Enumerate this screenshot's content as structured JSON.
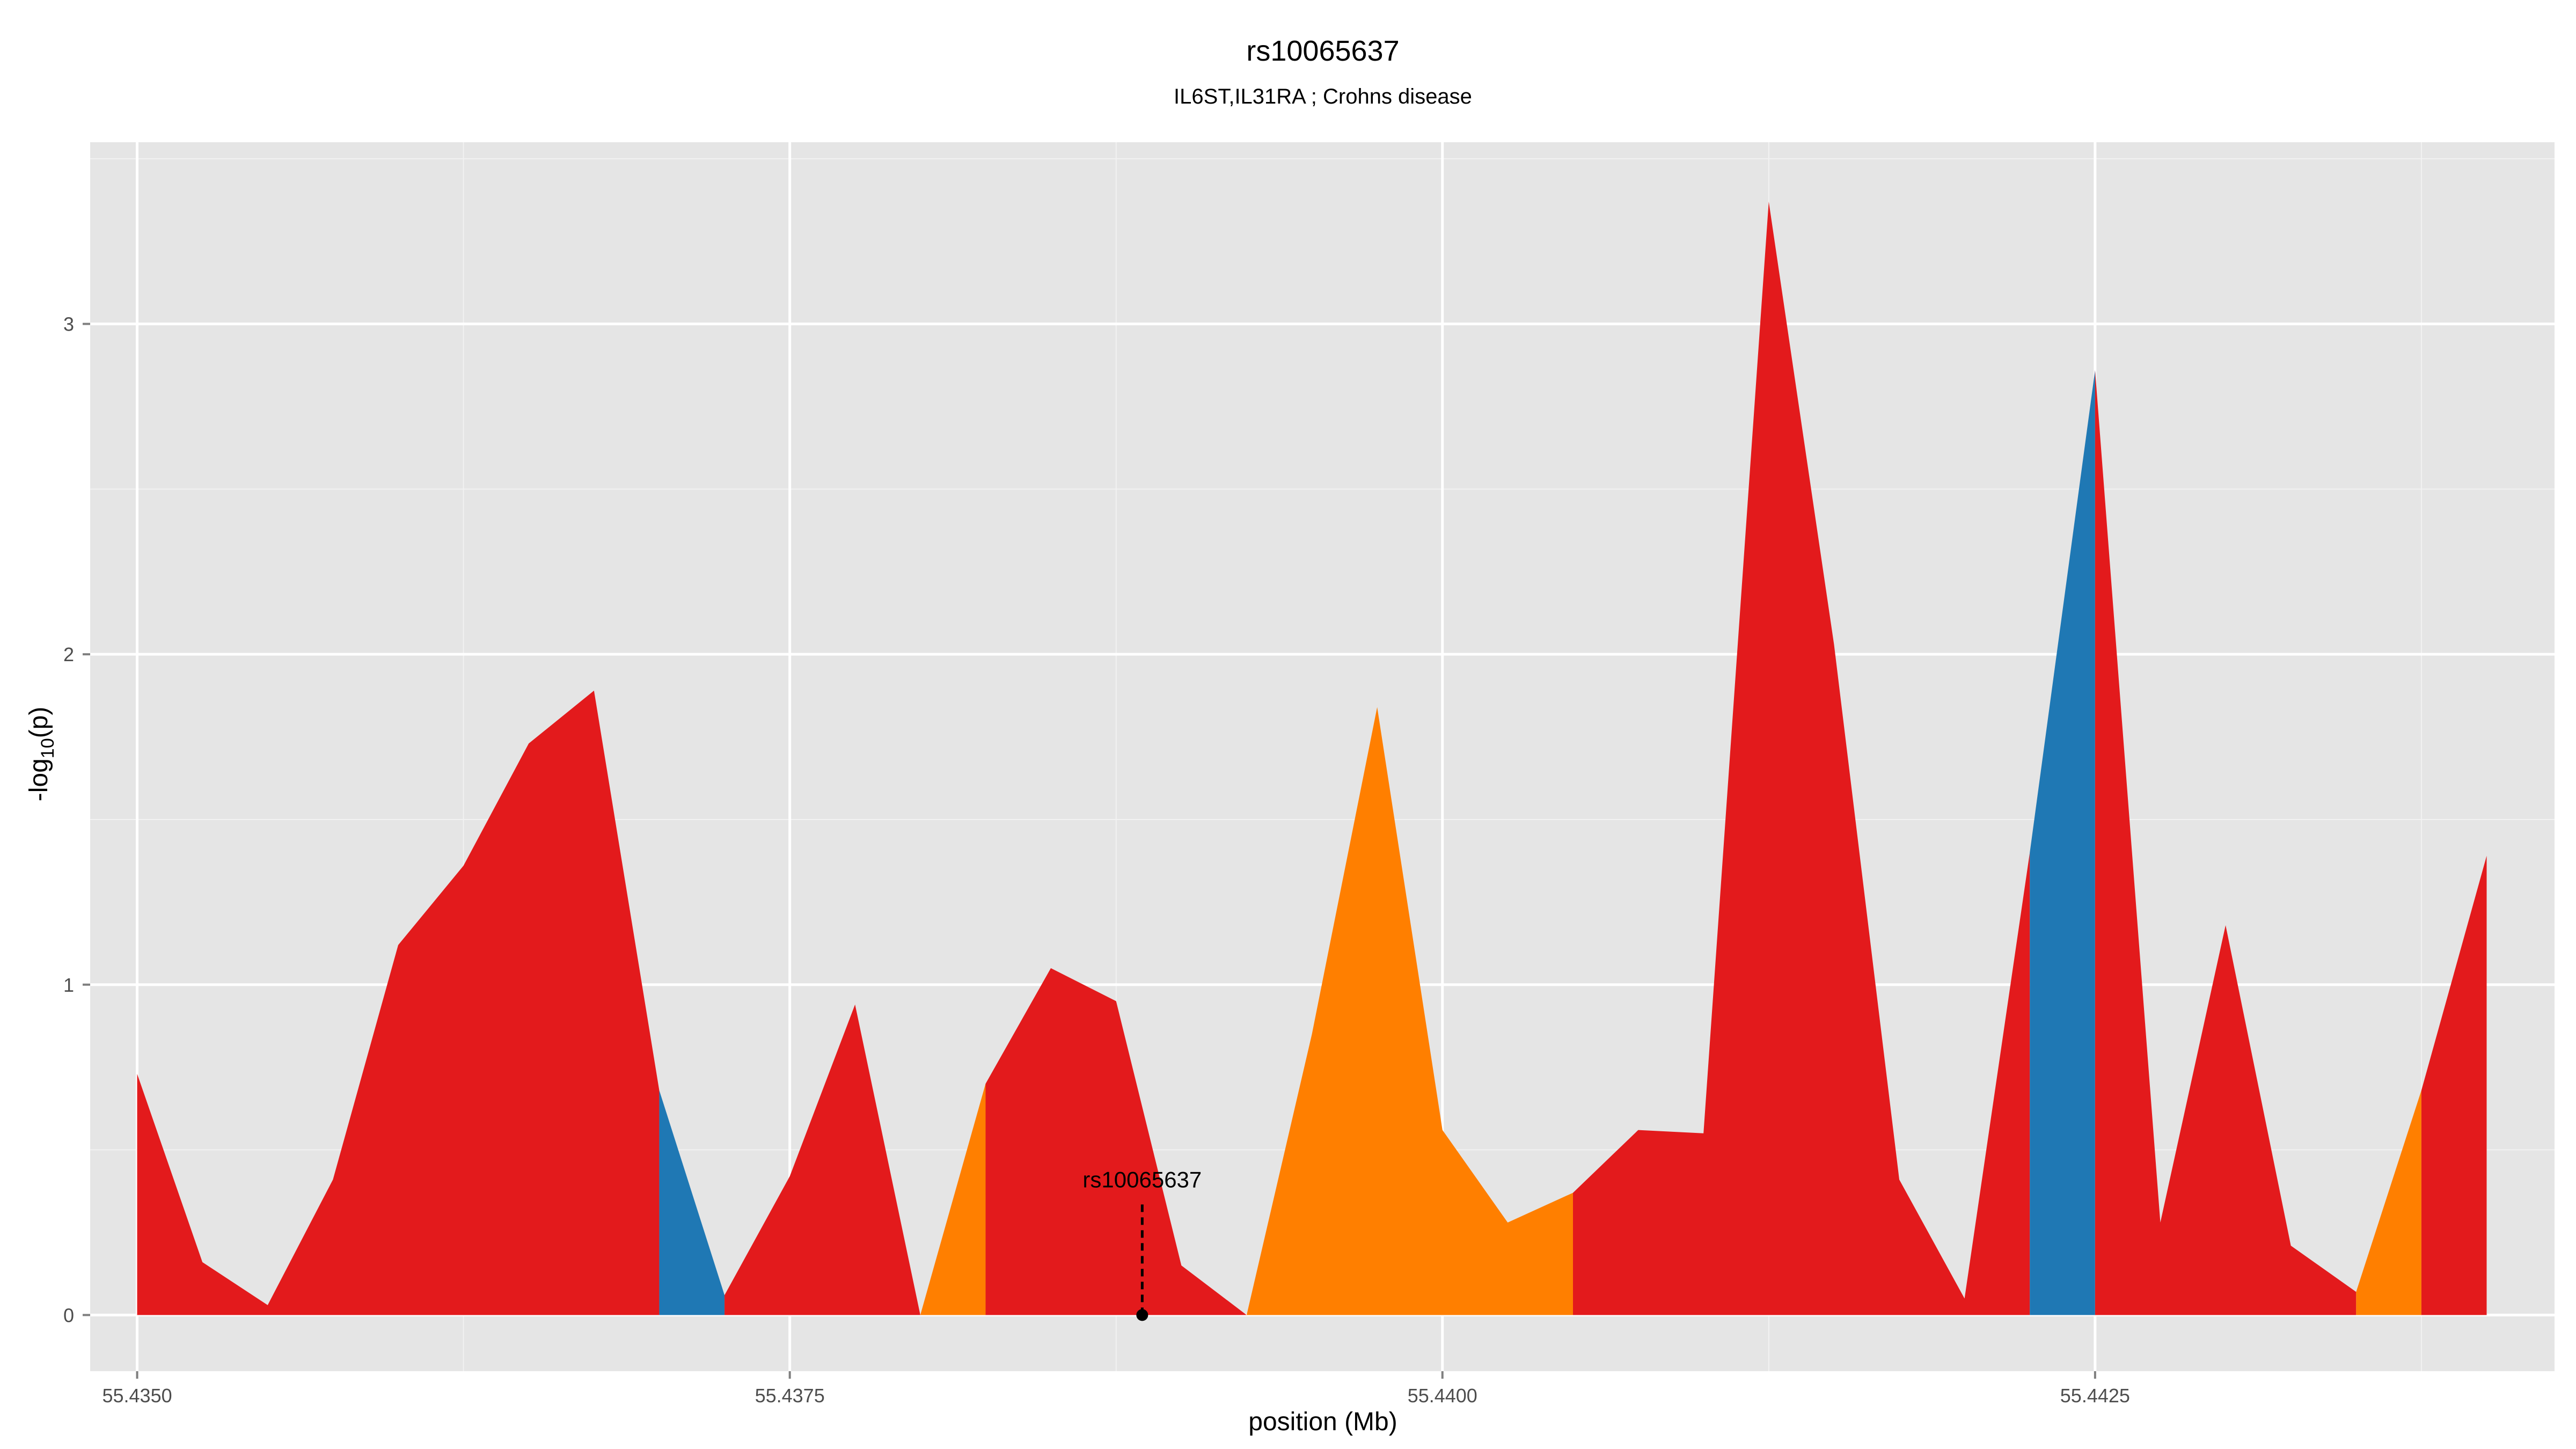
{
  "chart_data": {
    "type": "area",
    "title": "rs10065637",
    "subtitle": "IL6ST,IL31RA ; Crohns disease",
    "xlabel": "position (Mb)",
    "ylabel": "-log10(p)",
    "xlim": [
      55.43482,
      55.44426
    ],
    "ylim": [
      -0.17,
      3.55
    ],
    "x_ticks": [
      "55.4350",
      "55.4375",
      "55.4400",
      "55.4425"
    ],
    "x_tick_values": [
      55.435,
      55.4375,
      55.44,
      55.4425
    ],
    "y_ticks": [
      "0",
      "1",
      "2",
      "3"
    ],
    "y_tick_values": [
      0,
      1,
      2,
      3
    ],
    "grid": true,
    "colors": {
      "panel": "#e5e5e5",
      "grid": "#ffffff",
      "red": "#e31a1c",
      "blue": "#1f78b4",
      "orange": "#ff7f00"
    },
    "series": [
      {
        "color": "red",
        "points": [
          [
            55.435,
            0.73
          ],
          [
            55.43525,
            0.16
          ],
          [
            55.4355,
            0.03
          ],
          [
            55.43575,
            0.41
          ],
          [
            55.436,
            1.12
          ],
          [
            55.43625,
            1.36
          ],
          [
            55.4365,
            1.73
          ],
          [
            55.43675,
            1.89
          ],
          [
            55.437,
            0.68
          ]
        ]
      },
      {
        "color": "blue",
        "points": [
          [
            55.437,
            0.68
          ],
          [
            55.43725,
            0.06
          ]
        ]
      },
      {
        "color": "red",
        "points": [
          [
            55.43725,
            0.06
          ],
          [
            55.4375,
            0.42
          ],
          [
            55.43775,
            0.94
          ],
          [
            55.438,
            0.0
          ]
        ]
      },
      {
        "color": "orange",
        "points": [
          [
            55.438,
            0.0
          ],
          [
            55.43825,
            0.7
          ]
        ]
      },
      {
        "color": "red",
        "points": [
          [
            55.43825,
            0.7
          ],
          [
            55.4385,
            1.05
          ],
          [
            55.43875,
            0.95
          ],
          [
            55.439,
            0.15
          ],
          [
            55.43925,
            0.0
          ]
        ]
      },
      {
        "color": "orange",
        "points": [
          [
            55.43925,
            0.0
          ],
          [
            55.4395,
            0.85
          ],
          [
            55.43975,
            1.84
          ],
          [
            55.44,
            0.56
          ],
          [
            55.44025,
            0.28
          ],
          [
            55.4405,
            0.37
          ]
        ]
      },
      {
        "color": "red",
        "points": [
          [
            55.4405,
            0.37
          ],
          [
            55.44075,
            0.56
          ],
          [
            55.441,
            0.55
          ],
          [
            55.44125,
            3.37
          ],
          [
            55.4415,
            2.03
          ],
          [
            55.44175,
            0.41
          ],
          [
            55.442,
            0.05
          ],
          [
            55.44225,
            1.4
          ]
        ]
      },
      {
        "color": "blue",
        "points": [
          [
            55.44225,
            1.4
          ],
          [
            55.4425,
            2.86
          ]
        ]
      },
      {
        "color": "red",
        "points": [
          [
            55.4425,
            2.86
          ],
          [
            55.44275,
            0.28
          ],
          [
            55.443,
            1.18
          ],
          [
            55.44325,
            0.21
          ],
          [
            55.4435,
            0.07
          ]
        ]
      },
      {
        "color": "orange",
        "points": [
          [
            55.4435,
            0.07
          ],
          [
            55.44375,
            0.68
          ]
        ]
      },
      {
        "color": "red",
        "points": [
          [
            55.44375,
            0.68
          ],
          [
            55.444,
            1.39
          ]
        ]
      }
    ],
    "annotation": {
      "label": "rs10065637",
      "x": 55.43885,
      "y": 0.0
    }
  }
}
